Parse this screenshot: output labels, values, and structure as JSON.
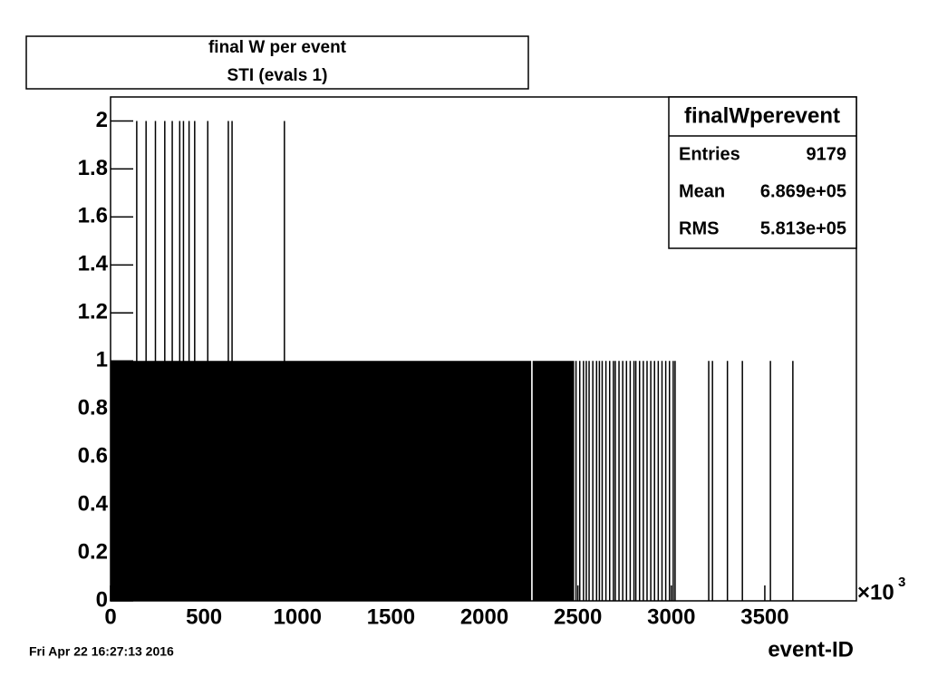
{
  "chart_data": {
    "type": "histogram",
    "title": "final W per event",
    "subtitle": "STI (evals 1)",
    "x_label": "event-ID",
    "x_scale_label": {
      "base": "×10",
      "exponent": "3"
    },
    "date": "Fri Apr 22 16:27:13 2016",
    "stats": {
      "name": "finalWperevent",
      "rows": [
        [
          "Entries",
          "9179"
        ],
        [
          "Mean",
          "6.869e+05"
        ],
        [
          "RMS",
          "5.813e+05"
        ]
      ]
    },
    "color": "#000000",
    "bins": [
      0,
      2250,
      2258,
      2480
    ],
    "values": [
      1,
      0,
      1
    ],
    "spikes": {
      "x": [
        140,
        190,
        240,
        290,
        330,
        370,
        390,
        420,
        450,
        520,
        630,
        650,
        930,
        2490,
        2510,
        2530,
        2545,
        2560,
        2580,
        2600,
        2615,
        2630,
        2650,
        2670,
        2690,
        2700,
        2720,
        2740,
        2760,
        2780,
        2800,
        2810,
        2830,
        2850,
        2870,
        2890,
        2910,
        2930,
        2950,
        2970,
        2990,
        3010,
        3020,
        3200,
        3220,
        3300,
        3380,
        3530,
        3650
      ],
      "values": [
        2,
        2,
        2,
        2,
        2,
        2,
        2,
        2,
        2,
        2,
        2,
        2,
        2,
        1,
        1,
        1,
        1,
        1,
        1,
        1,
        1,
        1,
        1,
        1,
        1,
        1,
        1,
        1,
        1,
        1,
        1,
        1,
        1,
        1,
        1,
        1,
        1,
        1,
        1,
        1,
        1,
        1,
        1,
        1,
        1,
        1,
        1,
        1,
        1
      ]
    },
    "xlim": [
      0,
      3990
    ],
    "ylim": [
      0,
      2.1
    ],
    "xticks": [
      0,
      500,
      1000,
      1500,
      2000,
      2500,
      3000,
      3500
    ],
    "yticks": [
      0,
      0.2,
      0.4,
      0.6,
      0.8,
      1,
      1.2,
      1.4,
      1.6,
      1.8,
      2
    ]
  }
}
